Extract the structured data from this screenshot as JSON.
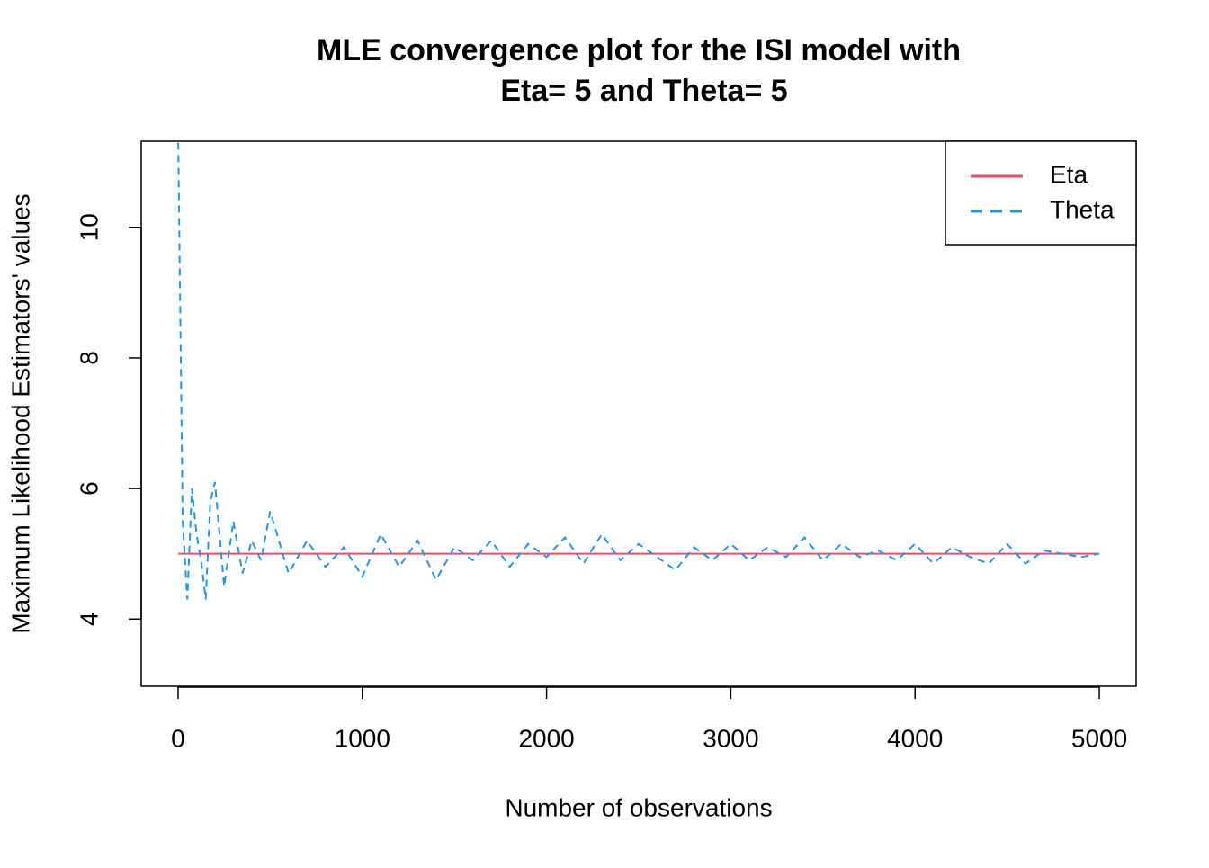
{
  "chart_data": {
    "type": "line",
    "title": [
      "MLE convergence plot for the ISI model with",
      "Eta= 5 and Theta= 5"
    ],
    "x_label": "Number of observations",
    "y_label": "Maximum Likelihood Estimators' values",
    "x": [
      1,
      25,
      50,
      75,
      100,
      125,
      150,
      175,
      200,
      250,
      300,
      350,
      400,
      450,
      500,
      600,
      700,
      800,
      900,
      1000,
      1100,
      1200,
      1300,
      1400,
      1500,
      1600,
      1700,
      1800,
      1900,
      2000,
      2100,
      2200,
      2300,
      2400,
      2500,
      2600,
      2700,
      2800,
      2900,
      3000,
      3100,
      3200,
      3300,
      3400,
      3500,
      3600,
      3700,
      3800,
      3900,
      4000,
      4100,
      4200,
      4300,
      4400,
      4500,
      4600,
      4700,
      4800,
      4900,
      5000
    ],
    "series": [
      {
        "name": "Eta",
        "color": "#DF536B",
        "dash": false,
        "values": [
          5,
          5,
          5,
          5,
          5,
          5,
          5,
          5,
          5,
          5,
          5,
          5,
          5,
          5,
          5,
          5,
          5,
          5,
          5,
          5,
          5,
          5,
          5,
          5,
          5,
          5,
          5,
          5,
          5,
          5,
          5,
          5,
          5,
          5,
          5,
          5,
          5,
          5,
          5,
          5,
          5,
          5,
          5,
          5,
          5,
          5,
          5,
          5,
          5,
          5,
          5,
          5,
          5,
          5,
          5,
          5,
          5,
          5,
          5,
          5
        ]
      },
      {
        "name": "Theta",
        "color": "#2297E6",
        "dash": true,
        "values": [
          11.3,
          5.5,
          4.3,
          6.0,
          5.3,
          4.9,
          4.3,
          5.8,
          6.1,
          4.5,
          5.5,
          4.7,
          5.2,
          4.9,
          5.65,
          4.7,
          5.2,
          4.8,
          5.1,
          4.65,
          5.3,
          4.8,
          5.2,
          4.6,
          5.1,
          4.9,
          5.2,
          4.8,
          5.15,
          4.95,
          5.25,
          4.85,
          5.3,
          4.9,
          5.15,
          4.95,
          4.75,
          5.1,
          4.9,
          5.15,
          4.9,
          5.1,
          4.95,
          5.25,
          4.9,
          5.15,
          4.95,
          5.05,
          4.9,
          5.15,
          4.85,
          5.1,
          4.95,
          4.85,
          5.15,
          4.85,
          5.05,
          5.0,
          4.95,
          5.0
        ]
      }
    ],
    "xlim": [
      -200,
      5200
    ],
    "xticks": [
      0,
      1000,
      2000,
      3000,
      4000,
      5000
    ],
    "ylim": [
      2.97,
      11.32
    ],
    "yticks": [
      4,
      6,
      8,
      10
    ],
    "legend": "top-right"
  }
}
